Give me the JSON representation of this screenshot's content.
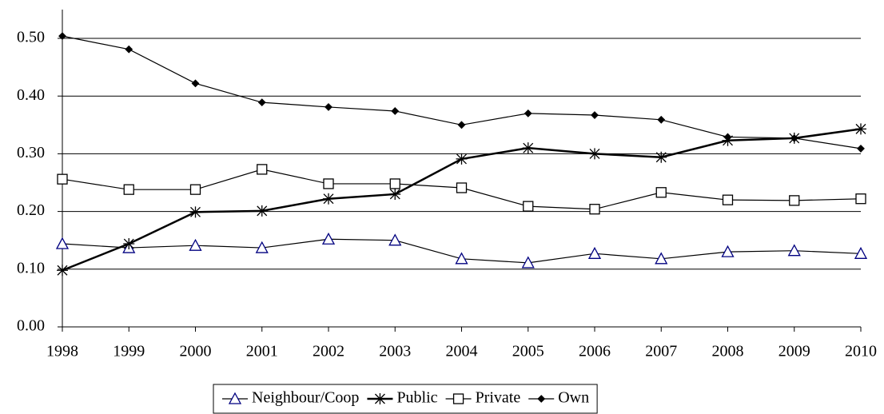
{
  "chart_data": {
    "type": "line",
    "x": [
      1998,
      1999,
      2000,
      2001,
      2002,
      2003,
      2004,
      2005,
      2006,
      2007,
      2008,
      2009,
      2010
    ],
    "xlim": [
      1998,
      2010
    ],
    "xticks": [
      1998,
      1999,
      2000,
      2001,
      2002,
      2003,
      2004,
      2005,
      2006,
      2007,
      2008,
      2009,
      2010
    ],
    "ylim": [
      0,
      0.5
    ],
    "yticks": [
      {
        "value": 0,
        "label": "0.00"
      },
      {
        "value": 0.1,
        "label": "0.10"
      },
      {
        "value": 0.2,
        "label": "0.20"
      },
      {
        "value": 0.3,
        "label": "0.30"
      },
      {
        "value": 0.4,
        "label": "0.40"
      },
      {
        "value": 0.5,
        "label": "0.50"
      }
    ],
    "grid": true,
    "legend": "bottom",
    "series": [
      {
        "name": "Neighbour/Coop",
        "color": "#000080",
        "line_color": "#000000",
        "marker": "triangle",
        "values": [
          0.144,
          0.137,
          0.141,
          0.137,
          0.152,
          0.15,
          0.118,
          0.111,
          0.127,
          0.118,
          0.13,
          0.132,
          0.127
        ]
      },
      {
        "name": "Public",
        "color": "#000000",
        "line_color": "#000000",
        "marker": "star",
        "values": [
          0.098,
          0.144,
          0.199,
          0.201,
          0.222,
          0.23,
          0.291,
          0.31,
          0.3,
          0.294,
          0.323,
          0.327,
          0.343
        ]
      },
      {
        "name": "Private",
        "color": "#000000",
        "line_color": "#000000",
        "marker": "square",
        "values": [
          0.256,
          0.238,
          0.238,
          0.273,
          0.248,
          0.248,
          0.241,
          0.209,
          0.204,
          0.233,
          0.22,
          0.219,
          0.222
        ]
      },
      {
        "name": "Own",
        "color": "#000000",
        "line_color": "#000000",
        "marker": "diamond",
        "values": [
          0.504,
          0.481,
          0.422,
          0.389,
          0.381,
          0.374,
          0.35,
          0.37,
          0.367,
          0.359,
          0.329,
          0.327,
          0.309
        ]
      }
    ]
  }
}
